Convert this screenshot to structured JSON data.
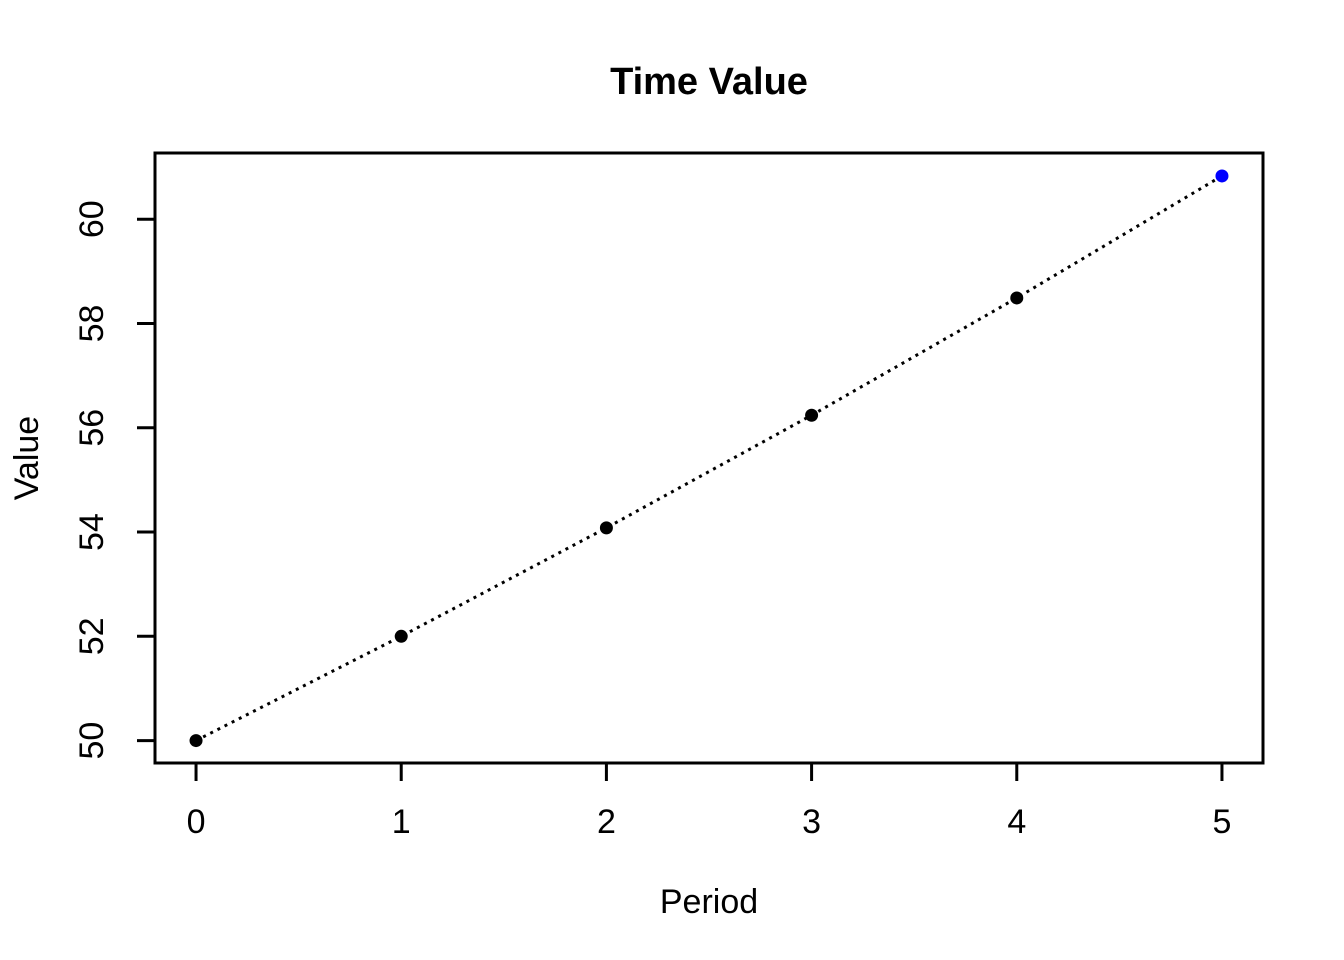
{
  "page": {
    "background": "#FFFFFF"
  },
  "chart_data": {
    "type": "line",
    "title": "Time Value",
    "xlabel": "Period",
    "ylabel": "Value",
    "x": [
      0,
      1,
      2,
      3,
      4,
      5
    ],
    "series": [
      {
        "name": "Value",
        "values": [
          50,
          52,
          54.08,
          56.24,
          58.49,
          60.83
        ]
      }
    ],
    "point_colors": [
      "#000000",
      "#000000",
      "#000000",
      "#000000",
      "#000000",
      "#0000FF"
    ],
    "line_color": "#000000",
    "line_style": "dotted",
    "marker": "filled-circle",
    "x_ticks": [
      "0",
      "1",
      "2",
      "3",
      "4",
      "5"
    ],
    "x_tick_values": [
      0,
      1,
      2,
      3,
      4,
      5
    ],
    "y_ticks": [
      "50",
      "52",
      "54",
      "56",
      "58",
      "60"
    ],
    "y_tick_values": [
      50,
      52,
      54,
      56,
      58,
      60
    ],
    "xlim": [
      -0.2,
      5.2
    ],
    "ylim": [
      49.57,
      61.27
    ],
    "grid": false,
    "legend": null,
    "axis_color": "#000000",
    "text_color": "#000000",
    "background_color": "#FFFFFF"
  }
}
